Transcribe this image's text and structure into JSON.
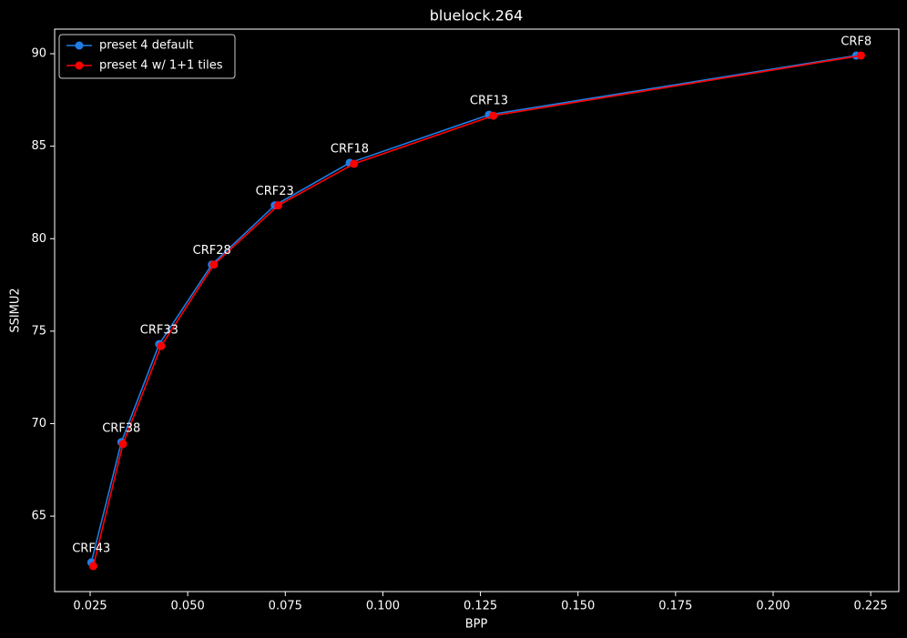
{
  "chart_data": {
    "type": "line",
    "title": "bluelock.264",
    "xlabel": "BPP",
    "ylabel": "SSIMU2",
    "xlim": [
      0.0159,
      0.2322
    ],
    "ylim": [
      60.92,
      91.33
    ],
    "xticks": [
      0.025,
      {
        "value": 0.05,
        "label": "0.050"
      },
      0.075,
      {
        "value": 0.1,
        "label": "0.100"
      },
      0.125,
      {
        "value": 0.15,
        "label": "0.150"
      },
      0.175,
      {
        "value": 0.2,
        "label": "0.200"
      },
      0.225
    ],
    "yticks": [
      65,
      70,
      75,
      80,
      85,
      90
    ],
    "legend": "upper left",
    "annotations": [
      "CRF43",
      "CRF38",
      "CRF33",
      "CRF28",
      "CRF23",
      "CRF18",
      "CRF13",
      "CRF8"
    ],
    "series": [
      {
        "name": "preset 4 default",
        "color": "#1f7ee6",
        "x": [
          0.0253,
          0.033,
          0.0427,
          0.0562,
          0.0723,
          0.0915,
          0.1272,
          0.2213
        ],
        "values": [
          62.5,
          69.0,
          74.3,
          78.6,
          81.8,
          84.1,
          86.7,
          89.9
        ]
      },
      {
        "name": "preset 4 w/ 1+1 tiles",
        "color": "#ff0000",
        "x": [
          0.0258,
          0.0334,
          0.0432,
          0.0567,
          0.0732,
          0.0926,
          0.1283,
          0.2225
        ],
        "values": [
          62.3,
          68.9,
          74.2,
          78.6,
          81.8,
          84.05,
          86.65,
          89.9
        ]
      }
    ]
  }
}
